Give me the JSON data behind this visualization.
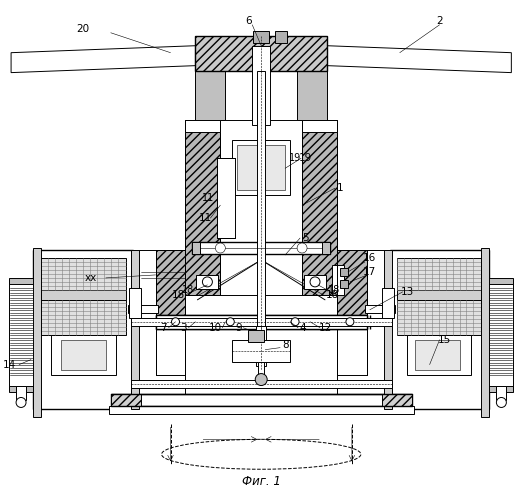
{
  "caption": "Фиг. 1",
  "bg_color": "#ffffff",
  "fig_width": 5.22,
  "fig_height": 5.0,
  "dpi": 100
}
